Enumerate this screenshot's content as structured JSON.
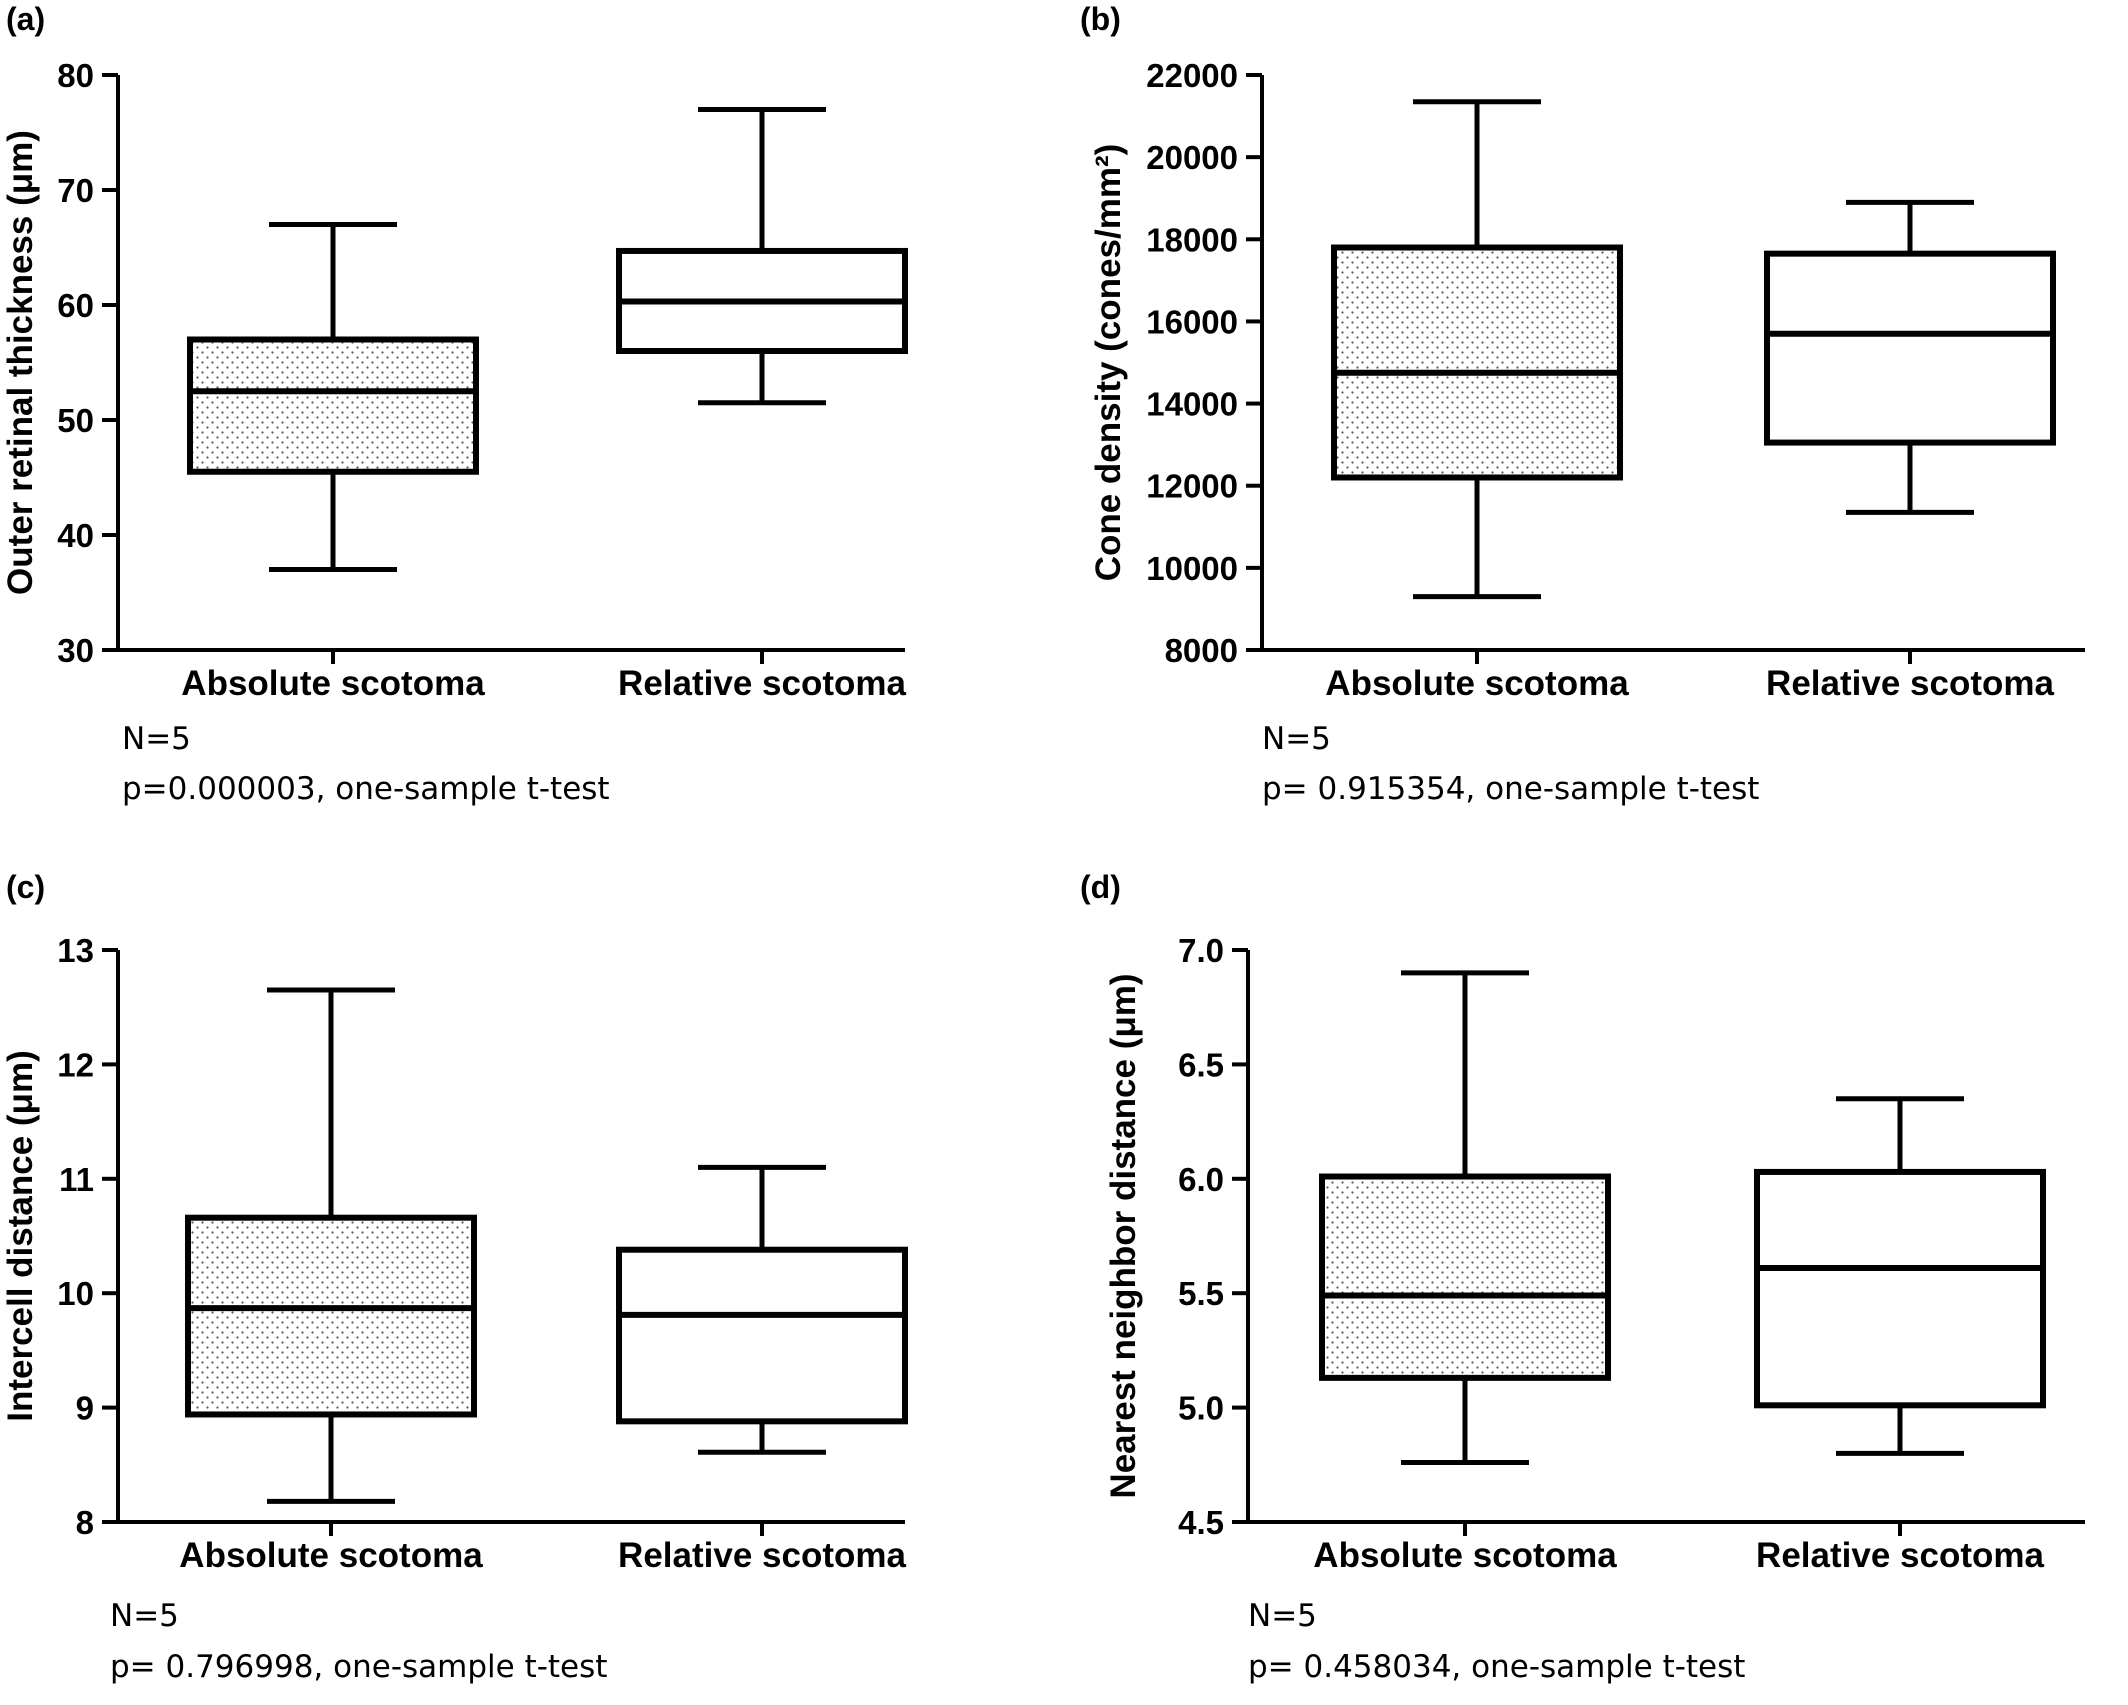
{
  "chart_data": [
    {
      "type": "box",
      "panel_label": "(a)",
      "ylabel": "Outer retinal thickness (μm)",
      "ylim": [
        30,
        80
      ],
      "yticks": [
        "30",
        "40",
        "50",
        "60",
        "70",
        "80"
      ],
      "categories": [
        "Absolute scotoma",
        "Relative scotoma"
      ],
      "boxes": [
        {
          "min": 37.0,
          "q1": 45.5,
          "median": 52.5,
          "q3": 57.0,
          "max": 67.0,
          "pattern": "dotted"
        },
        {
          "min": 51.5,
          "q1": 56.0,
          "median": 60.3,
          "q3": 64.7,
          "max": 77.0,
          "pattern": "none"
        }
      ],
      "notes": [
        "N=5",
        "p=0.000003, one-sample t-test"
      ]
    },
    {
      "type": "box",
      "panel_label": "(b)",
      "ylabel": "Cone density (cones/mm²)",
      "ylim": [
        8000,
        22000
      ],
      "yticks": [
        "8000",
        "10000",
        "12000",
        "14000",
        "16000",
        "18000",
        "20000",
        "22000"
      ],
      "categories": [
        "Absolute scotoma",
        "Relative scotoma"
      ],
      "boxes": [
        {
          "min": 9300,
          "q1": 12200,
          "median": 14750,
          "q3": 17800,
          "max": 21350,
          "pattern": "dotted"
        },
        {
          "min": 11350,
          "q1": 13050,
          "median": 15700,
          "q3": 17650,
          "max": 18900,
          "pattern": "none"
        }
      ],
      "notes": [
        "N=5",
        "p= 0.915354, one-sample t-test"
      ]
    },
    {
      "type": "box",
      "panel_label": "(c)",
      "ylabel": "Intercell distance (μm)",
      "ylim": [
        8,
        13
      ],
      "yticks": [
        "8",
        "9",
        "10",
        "11",
        "12",
        "13"
      ],
      "categories": [
        "Absolute scotoma",
        "Relative scotoma"
      ],
      "boxes": [
        {
          "min": 8.18,
          "q1": 8.94,
          "median": 9.87,
          "q3": 10.66,
          "max": 12.65,
          "pattern": "dotted"
        },
        {
          "min": 8.61,
          "q1": 8.88,
          "median": 9.81,
          "q3": 10.38,
          "max": 11.1,
          "pattern": "none"
        }
      ],
      "notes": [
        "N=5",
        "p= 0.796998, one-sample t-test"
      ]
    },
    {
      "type": "box",
      "panel_label": "(d)",
      "ylabel": "Nearest neighbor distance (μm)",
      "ylim": [
        4.5,
        7.0
      ],
      "yticks": [
        "4.5",
        "5.0",
        "5.5",
        "6.0",
        "6.5",
        "7.0"
      ],
      "categories": [
        "Absolute scotoma",
        "Relative scotoma"
      ],
      "boxes": [
        {
          "min": 4.76,
          "q1": 5.13,
          "median": 5.49,
          "q3": 6.01,
          "max": 6.9,
          "pattern": "dotted"
        },
        {
          "min": 4.8,
          "q1": 5.01,
          "median": 5.61,
          "q3": 6.03,
          "max": 6.35,
          "pattern": "none"
        }
      ],
      "notes": [
        "N=5",
        "p= 0.458034, one-sample t-test"
      ]
    }
  ],
  "colors": {
    "stroke": "#000000",
    "background": "#ffffff",
    "dot": "#555555"
  }
}
